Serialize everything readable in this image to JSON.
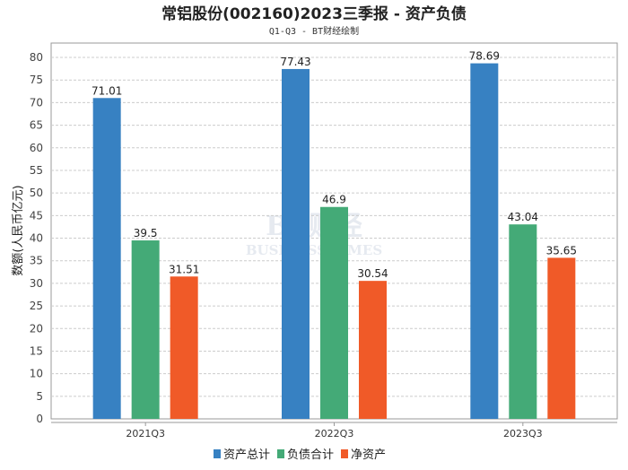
{
  "chart_data": {
    "type": "bar",
    "title": "常铝股份(002160)2023三季报 - 资产负债",
    "subtitle": "Q1-Q3 - BT财经绘制",
    "xlabel": "",
    "ylabel": "数额(人民币亿元)",
    "ylim": [
      0,
      80
    ],
    "yticks": [
      0,
      5,
      10,
      15,
      20,
      25,
      30,
      35,
      40,
      45,
      50,
      55,
      60,
      65,
      70,
      75,
      80
    ],
    "grid": true,
    "legend_position": "bottom",
    "categories": [
      "2021Q3",
      "2022Q3",
      "2023Q3"
    ],
    "series": [
      {
        "name": "资产总计",
        "color": "#3781c2",
        "values": [
          71.01,
          77.43,
          78.69
        ],
        "labels": [
          "71.01",
          "77.43",
          "78.69"
        ]
      },
      {
        "name": "负债合计",
        "color": "#44aa77",
        "values": [
          39.5,
          46.9,
          43.04
        ],
        "labels": [
          "39.5",
          "46.9",
          "43.04"
        ]
      },
      {
        "name": "净资产",
        "color": "#f05a28",
        "values": [
          31.51,
          30.54,
          35.65
        ],
        "labels": [
          "31.51",
          "30.54",
          "35.65"
        ]
      }
    ],
    "watermark": {
      "main": "BT财经",
      "sub": "BUSINESS TIMES"
    }
  }
}
